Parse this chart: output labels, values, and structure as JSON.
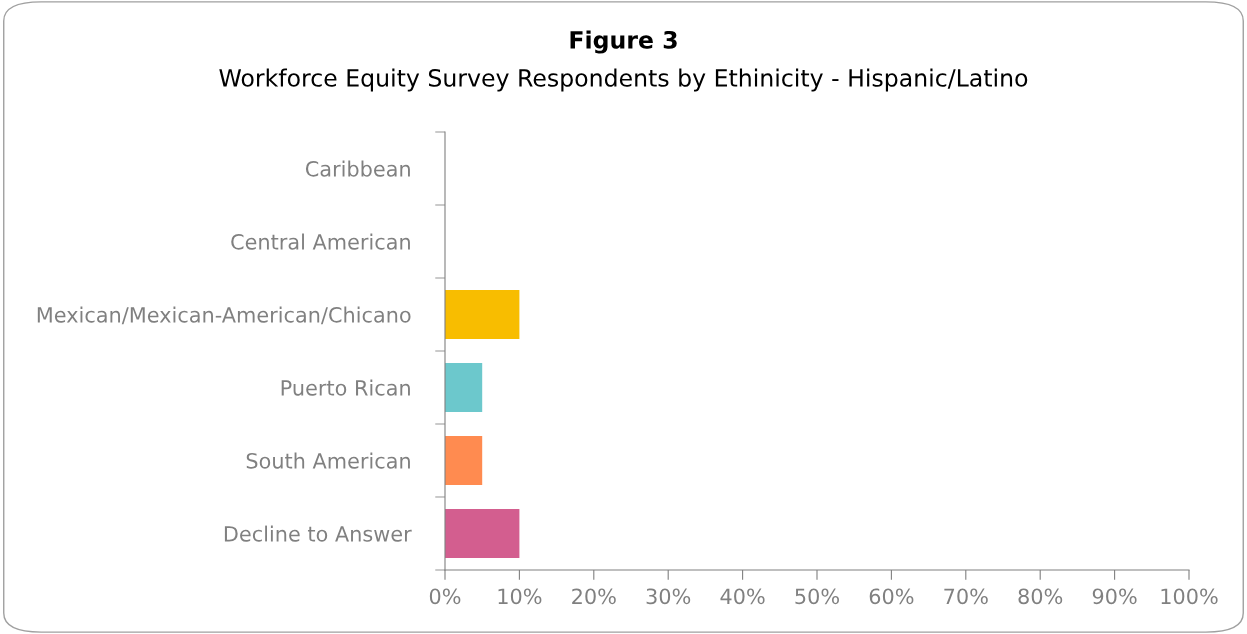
{
  "chart_data": {
    "type": "bar",
    "orientation": "horizontal",
    "title": "Figure 3",
    "subtitle": "Workforce Equity Survey Respondents by Ethinicity - Hispanic/Latino",
    "categories": [
      "Caribbean",
      "Central American",
      "Mexican/Mexican-American/Chicano",
      "Puerto Rican",
      "South American",
      "Decline to Answer"
    ],
    "values": [
      0,
      0,
      10,
      5,
      5,
      10
    ],
    "colors": [
      "#4472c4",
      "#ed7d31",
      "#f8bd00",
      "#6cc8cc",
      "#ff8b50",
      "#d35e8f"
    ],
    "xlim": [
      0,
      100
    ],
    "xticks": [
      {
        "value": 0,
        "label": "0%"
      },
      {
        "value": 10,
        "label": "10%"
      },
      {
        "value": 20,
        "label": "20%"
      },
      {
        "value": 30,
        "label": "30%"
      },
      {
        "value": 40,
        "label": "40%"
      },
      {
        "value": 50,
        "label": "50%"
      },
      {
        "value": 60,
        "label": "60%"
      },
      {
        "value": 70,
        "label": "70%"
      },
      {
        "value": 80,
        "label": "80%"
      },
      {
        "value": 90,
        "label": "90%"
      },
      {
        "value": 100,
        "label": "100%"
      }
    ],
    "grid": false,
    "legend": false
  }
}
